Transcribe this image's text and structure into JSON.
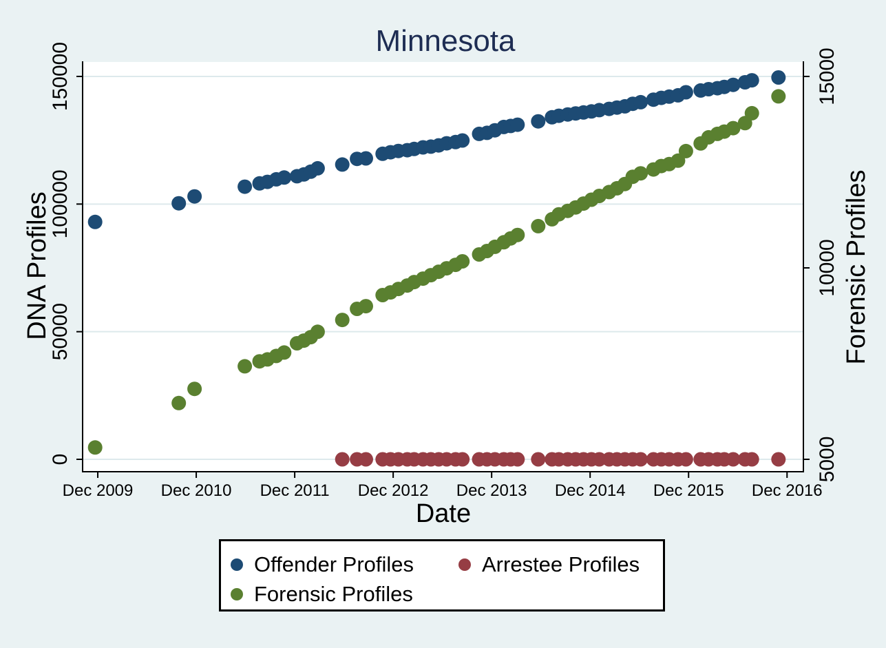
{
  "title": "Minnesota",
  "colors": {
    "background": "#eaf2f3",
    "plot_background": "#ffffff",
    "grid": "#dde9ec",
    "axis": "#000000",
    "title_text": "#1e2d53",
    "offender": "#1d4b74",
    "arrestee": "#963d44",
    "forensic": "#5a8030"
  },
  "chart_data": {
    "type": "scatter",
    "title": "Minnesota",
    "x_axis": {
      "title": "Date",
      "range": [
        2009.763,
        2017.083
      ],
      "ticks": [
        {
          "value": 2009.917,
          "label": "Dec 2009"
        },
        {
          "value": 2010.917,
          "label": "Dec 2010"
        },
        {
          "value": 2011.917,
          "label": "Dec 2011"
        },
        {
          "value": 2012.917,
          "label": "Dec 2012"
        },
        {
          "value": 2013.917,
          "label": "Dec 2013"
        },
        {
          "value": 2014.917,
          "label": "Dec 2014"
        },
        {
          "value": 2015.917,
          "label": "Dec 2015"
        },
        {
          "value": 2016.917,
          "label": "Dec 2016"
        }
      ]
    },
    "y_left": {
      "title": "DNA Profiles",
      "range": [
        -4856,
        155666
      ],
      "grid": true,
      "ticks": [
        {
          "value": 0,
          "label": "0"
        },
        {
          "value": 50000,
          "label": "50000"
        },
        {
          "value": 100000,
          "label": "100000"
        },
        {
          "value": 150000,
          "label": "150000"
        }
      ]
    },
    "y_right": {
      "title": "Forensic Profiles",
      "range": [
        4676,
        15378
      ],
      "grid": false,
      "ticks": [
        {
          "value": 5000,
          "label": "5000"
        },
        {
          "value": 10000,
          "label": "10000"
        },
        {
          "value": 15000,
          "label": "15000"
        }
      ]
    },
    "legend": {
      "items": [
        {
          "label": "Offender Profiles",
          "series": "offender"
        },
        {
          "label": "Arrestee Profiles",
          "series": "arrestee"
        },
        {
          "label": "Forensic Profiles",
          "series": "forensic"
        }
      ]
    },
    "series": [
      {
        "id": "offender",
        "name": "Offender Profiles",
        "axis": "left",
        "color": "#1d4b74",
        "points": [
          [
            2009.89,
            93000
          ],
          [
            2010.74,
            100300
          ],
          [
            2010.9,
            103000
          ],
          [
            2011.41,
            106800
          ],
          [
            2011.56,
            108100
          ],
          [
            2011.64,
            108700
          ],
          [
            2011.73,
            109700
          ],
          [
            2011.81,
            110400
          ],
          [
            2011.94,
            110900
          ],
          [
            2012.01,
            111600
          ],
          [
            2012.08,
            112700
          ],
          [
            2012.15,
            114000
          ],
          [
            2012.4,
            115500
          ],
          [
            2012.55,
            117700
          ],
          [
            2012.64,
            117900
          ],
          [
            2012.81,
            119700
          ],
          [
            2012.89,
            120300
          ],
          [
            2012.97,
            120800
          ],
          [
            2013.06,
            121100
          ],
          [
            2013.13,
            121600
          ],
          [
            2013.22,
            122200
          ],
          [
            2013.3,
            122500
          ],
          [
            2013.38,
            123000
          ],
          [
            2013.46,
            123800
          ],
          [
            2013.55,
            124300
          ],
          [
            2013.62,
            124900
          ],
          [
            2013.79,
            127500
          ],
          [
            2013.87,
            127900
          ],
          [
            2013.95,
            128900
          ],
          [
            2014.04,
            130200
          ],
          [
            2014.11,
            130600
          ],
          [
            2014.18,
            131100
          ],
          [
            2014.39,
            132400
          ],
          [
            2014.53,
            134000
          ],
          [
            2014.6,
            134600
          ],
          [
            2014.69,
            135100
          ],
          [
            2014.77,
            135500
          ],
          [
            2014.85,
            135900
          ],
          [
            2014.93,
            136300
          ],
          [
            2015.01,
            136800
          ],
          [
            2015.11,
            137300
          ],
          [
            2015.19,
            137800
          ],
          [
            2015.27,
            138300
          ],
          [
            2015.35,
            139300
          ],
          [
            2015.43,
            139900
          ],
          [
            2015.56,
            140900
          ],
          [
            2015.64,
            141600
          ],
          [
            2015.72,
            142100
          ],
          [
            2015.81,
            142600
          ],
          [
            2015.89,
            143800
          ],
          [
            2016.04,
            144500
          ],
          [
            2016.12,
            145000
          ],
          [
            2016.21,
            145400
          ],
          [
            2016.28,
            145900
          ],
          [
            2016.37,
            146700
          ],
          [
            2016.49,
            147700
          ],
          [
            2016.56,
            148500
          ],
          [
            2016.83,
            149600
          ]
        ]
      },
      {
        "id": "arrestee",
        "name": "Arrestee Profiles",
        "axis": "left",
        "color": "#963d44",
        "points": [
          [
            2012.4,
            0
          ],
          [
            2012.55,
            0
          ],
          [
            2012.64,
            0
          ],
          [
            2012.81,
            0
          ],
          [
            2012.89,
            0
          ],
          [
            2012.97,
            0
          ],
          [
            2013.06,
            0
          ],
          [
            2013.13,
            0
          ],
          [
            2013.22,
            0
          ],
          [
            2013.3,
            0
          ],
          [
            2013.38,
            0
          ],
          [
            2013.46,
            0
          ],
          [
            2013.55,
            0
          ],
          [
            2013.62,
            0
          ],
          [
            2013.79,
            0
          ],
          [
            2013.87,
            0
          ],
          [
            2013.95,
            0
          ],
          [
            2014.04,
            0
          ],
          [
            2014.11,
            0
          ],
          [
            2014.18,
            0
          ],
          [
            2014.39,
            0
          ],
          [
            2014.53,
            0
          ],
          [
            2014.6,
            0
          ],
          [
            2014.69,
            0
          ],
          [
            2014.77,
            0
          ],
          [
            2014.85,
            0
          ],
          [
            2014.93,
            0
          ],
          [
            2015.01,
            0
          ],
          [
            2015.11,
            0
          ],
          [
            2015.19,
            0
          ],
          [
            2015.27,
            0
          ],
          [
            2015.35,
            0
          ],
          [
            2015.43,
            0
          ],
          [
            2015.56,
            0
          ],
          [
            2015.64,
            0
          ],
          [
            2015.72,
            0
          ],
          [
            2015.81,
            0
          ],
          [
            2015.89,
            0
          ],
          [
            2016.04,
            0
          ],
          [
            2016.12,
            0
          ],
          [
            2016.21,
            0
          ],
          [
            2016.28,
            0
          ],
          [
            2016.37,
            0
          ],
          [
            2016.49,
            0
          ],
          [
            2016.56,
            0
          ],
          [
            2016.83,
            0
          ]
        ]
      },
      {
        "id": "forensic",
        "name": "Forensic Profiles",
        "axis": "right",
        "color": "#5a8030",
        "points": [
          [
            2009.89,
            5310
          ],
          [
            2010.74,
            6470
          ],
          [
            2010.9,
            6840
          ],
          [
            2011.41,
            7430
          ],
          [
            2011.56,
            7560
          ],
          [
            2011.64,
            7610
          ],
          [
            2011.73,
            7700
          ],
          [
            2011.81,
            7790
          ],
          [
            2011.94,
            8030
          ],
          [
            2012.01,
            8100
          ],
          [
            2012.08,
            8190
          ],
          [
            2012.15,
            8330
          ],
          [
            2012.4,
            8640
          ],
          [
            2012.55,
            8930
          ],
          [
            2012.64,
            9000
          ],
          [
            2012.81,
            9290
          ],
          [
            2012.89,
            9360
          ],
          [
            2012.97,
            9450
          ],
          [
            2013.06,
            9540
          ],
          [
            2013.13,
            9630
          ],
          [
            2013.22,
            9720
          ],
          [
            2013.3,
            9810
          ],
          [
            2013.38,
            9900
          ],
          [
            2013.46,
            9990
          ],
          [
            2013.55,
            10080
          ],
          [
            2013.62,
            10170
          ],
          [
            2013.79,
            10350
          ],
          [
            2013.87,
            10440
          ],
          [
            2013.95,
            10550
          ],
          [
            2014.04,
            10670
          ],
          [
            2014.11,
            10770
          ],
          [
            2014.18,
            10860
          ],
          [
            2014.39,
            11090
          ],
          [
            2014.53,
            11270
          ],
          [
            2014.6,
            11400
          ],
          [
            2014.69,
            11490
          ],
          [
            2014.77,
            11580
          ],
          [
            2014.85,
            11680
          ],
          [
            2014.93,
            11780
          ],
          [
            2015.01,
            11880
          ],
          [
            2015.11,
            11980
          ],
          [
            2015.19,
            12080
          ],
          [
            2015.27,
            12190
          ],
          [
            2015.35,
            12380
          ],
          [
            2015.43,
            12470
          ],
          [
            2015.56,
            12570
          ],
          [
            2015.64,
            12660
          ],
          [
            2015.72,
            12710
          ],
          [
            2015.81,
            12800
          ],
          [
            2015.89,
            13050
          ],
          [
            2016.04,
            13250
          ],
          [
            2016.12,
            13410
          ],
          [
            2016.21,
            13500
          ],
          [
            2016.28,
            13560
          ],
          [
            2016.37,
            13650
          ],
          [
            2016.49,
            13780
          ],
          [
            2016.56,
            14040
          ],
          [
            2016.83,
            14480
          ]
        ]
      }
    ]
  }
}
